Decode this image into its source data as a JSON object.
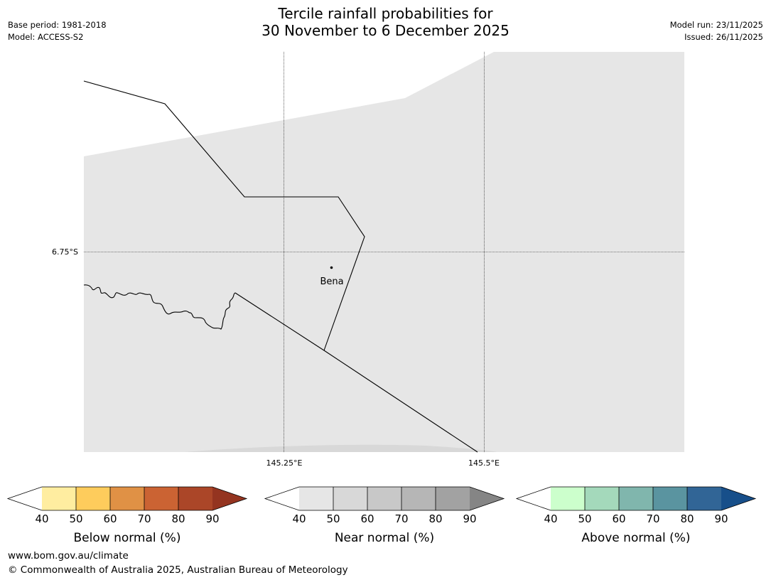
{
  "header": {
    "title_line1": "Tercile rainfall probabilities for",
    "title_line2": "30 November to 6 December 2025",
    "base_period": "Base period: 1981-2018",
    "model": "Model: ACCESS-S2",
    "model_run": "Model run: 23/11/2025",
    "issued": "Issued: 26/11/2025"
  },
  "map": {
    "place_label": "Bena",
    "lat_label": "6.75°S",
    "lon_labels": [
      "145.25°E",
      "145.5°E"
    ],
    "fill_color": "#e6e6e6"
  },
  "legends": [
    {
      "label": "Below normal (%)",
      "ticks": [
        "40",
        "50",
        "60",
        "70",
        "80",
        "90"
      ],
      "colors": [
        "#ffeda0",
        "#fecc5c",
        "#e09145",
        "#cb6333",
        "#ab4628",
        "#943420"
      ]
    },
    {
      "label": "Near normal (%)",
      "ticks": [
        "40",
        "50",
        "60",
        "70",
        "80",
        "90"
      ],
      "colors": [
        "#e6e6e6",
        "#d8d8d8",
        "#c8c8c8",
        "#b6b6b6",
        "#a2a2a2",
        "#858585"
      ]
    },
    {
      "label": "Above normal (%)",
      "ticks": [
        "40",
        "50",
        "60",
        "70",
        "80",
        "90"
      ],
      "colors": [
        "#ccffcc",
        "#a4d9bb",
        "#80b6ad",
        "#5a94a0",
        "#316596",
        "#174f8a"
      ]
    }
  ],
  "footer": {
    "url": "www.bom.gov.au/climate",
    "copyright": "© Commonwealth of Australia 2025, Australian Bureau of Meteorology"
  }
}
